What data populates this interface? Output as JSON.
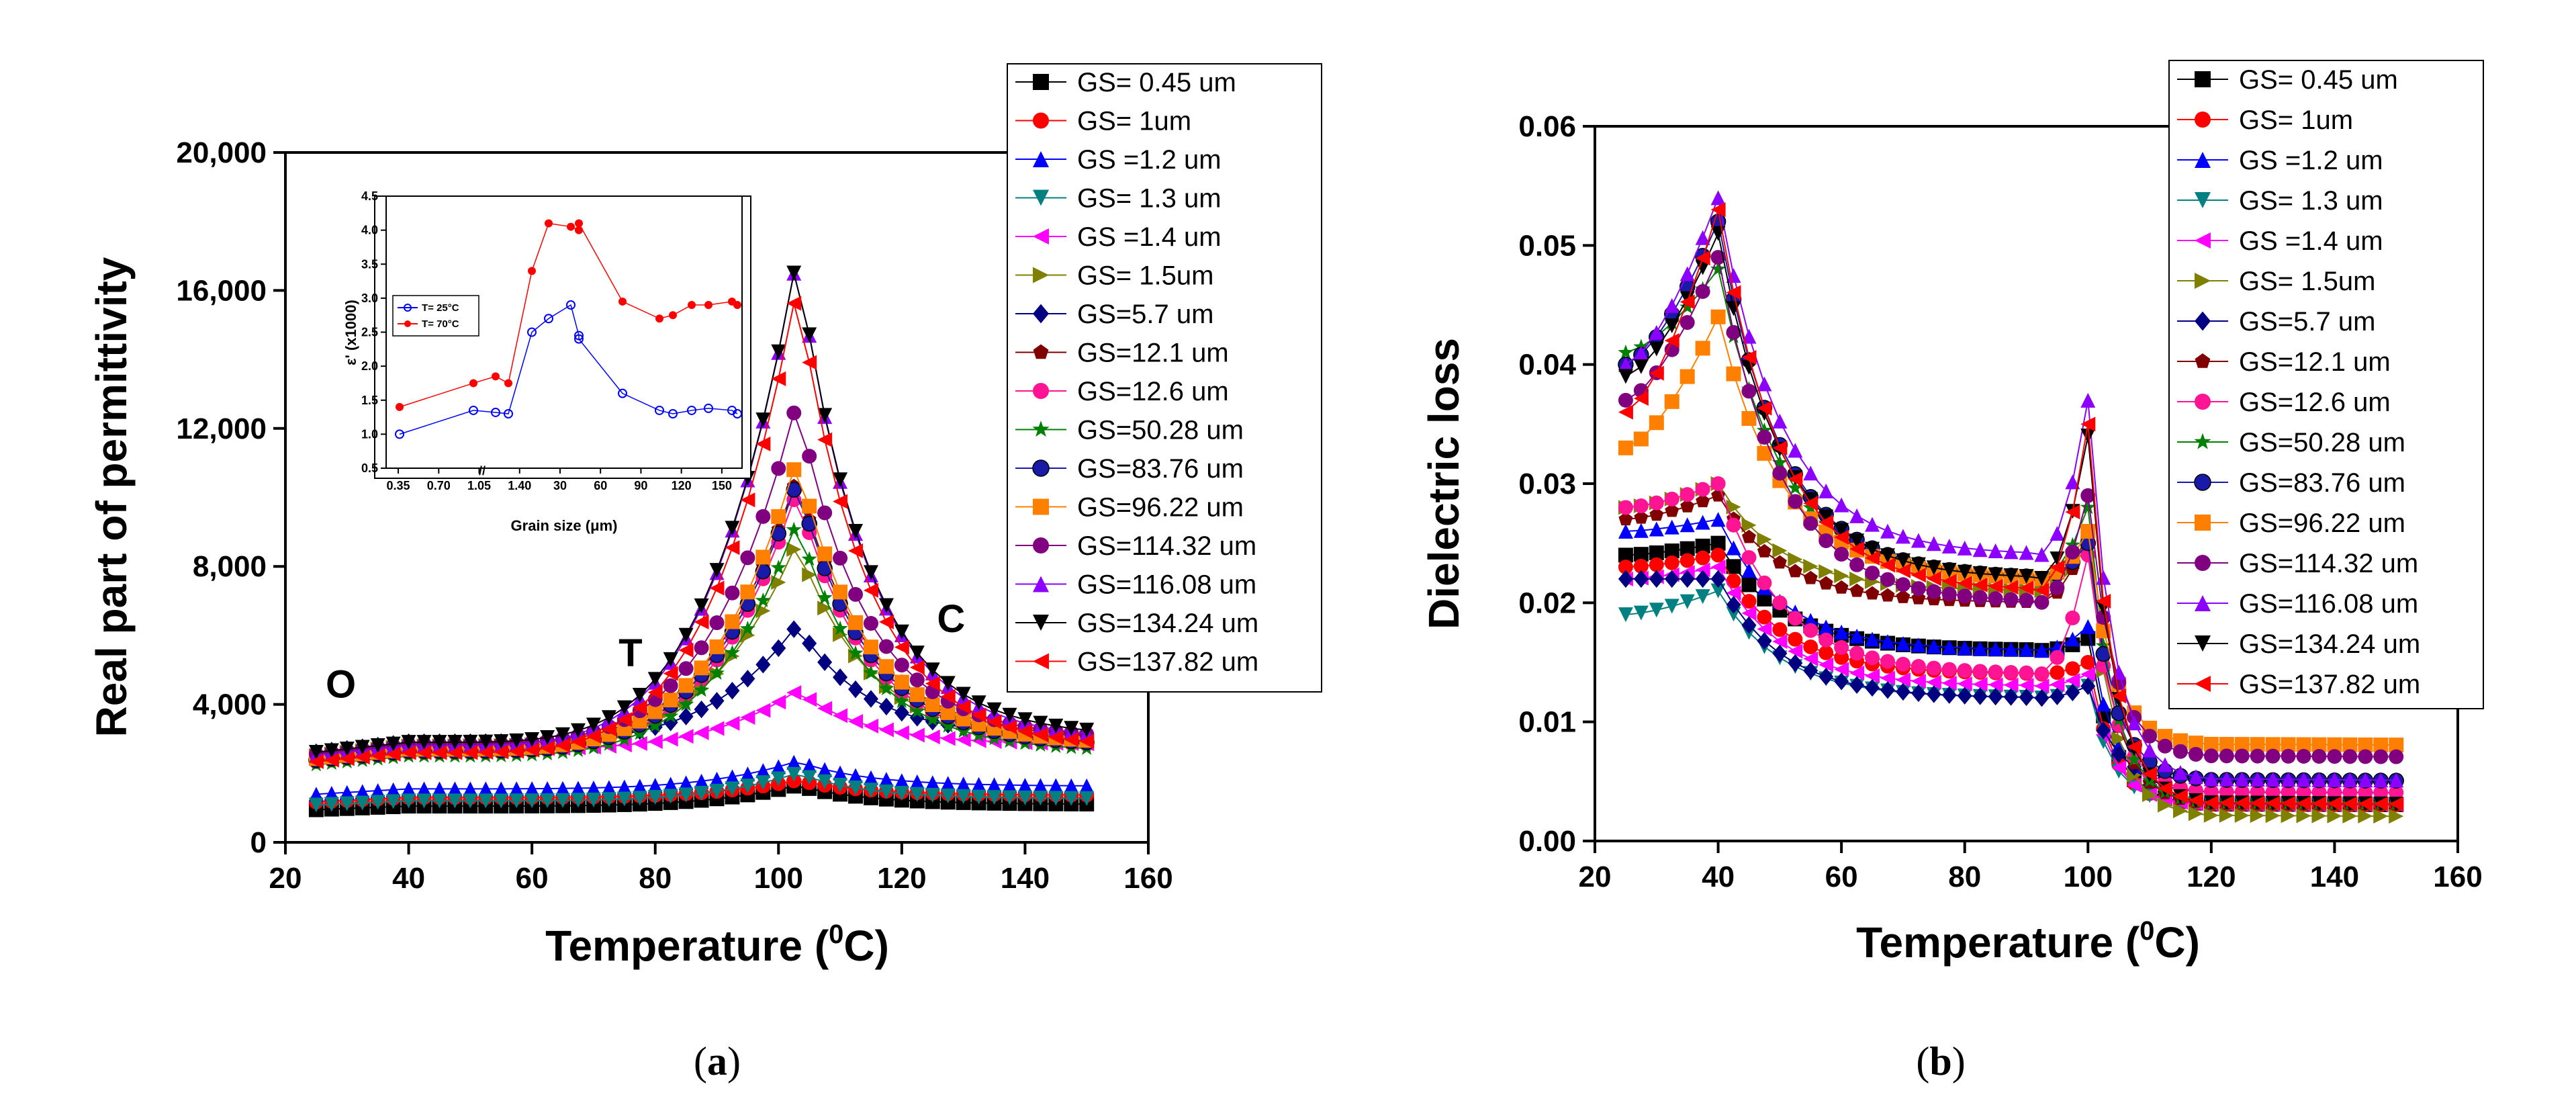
{
  "legend_entries": [
    "GS= 0.45 um",
    "GS= 1um",
    "GS =1.2 um",
    "GS= 1.3 um",
    "GS =1.4 um",
    "GS= 1.5um",
    "GS=5.7 um",
    "GS=12.1 um",
    "GS=12.6 um",
    "GS=50.28 um",
    "GS=83.76 um",
    "GS=96.22 um",
    "GS=114.32 um",
    "GS=116.08 um",
    "GS=134.24 um",
    "GS=137.82 um"
  ],
  "series_style": [
    {
      "color": "#000000",
      "marker": "square"
    },
    {
      "color": "#ff0000",
      "marker": "circle"
    },
    {
      "color": "#0000ff",
      "marker": "triangle-up"
    },
    {
      "color": "#008080",
      "marker": "triangle-down"
    },
    {
      "color": "#ff00ff",
      "marker": "triangle-left"
    },
    {
      "color": "#808000",
      "marker": "triangle-right"
    },
    {
      "color": "#000080",
      "marker": "diamond"
    },
    {
      "color": "#800000",
      "marker": "pentagon"
    },
    {
      "color": "#ff1493",
      "marker": "circle"
    },
    {
      "color": "#008000",
      "marker": "star"
    },
    {
      "color": "#1a1aa8",
      "marker": "circle-ring"
    },
    {
      "color": "#ff8000",
      "marker": "square"
    },
    {
      "color": "#800080",
      "marker": "circle"
    },
    {
      "color": "#8b00ff",
      "marker": "triangle-up"
    },
    {
      "color": "#000000",
      "marker": "triangle-down"
    },
    {
      "color": "#ff0000",
      "marker": "triangle-left"
    }
  ],
  "chart_data": [
    {
      "id": "a",
      "type": "line",
      "caption": "(a)",
      "xlabel": "Temperature (",
      "xlabel_sup": "0",
      "xlabel_end": "C)",
      "ylabel": "Real part of permittivity",
      "xlim": [
        20,
        160
      ],
      "ylim": [
        0,
        20000
      ],
      "xticks": [
        20,
        40,
        60,
        80,
        100,
        120,
        140,
        160
      ],
      "yticks": [
        0,
        4000,
        8000,
        12000,
        16000,
        20000
      ],
      "ytick_labels": [
        "0",
        "4,000",
        "8,000",
        "12,000",
        "16,000",
        "20,000"
      ],
      "annotations": [
        {
          "text": "O",
          "x": 29,
          "y": 4200
        },
        {
          "text": "T",
          "x": 76,
          "y": 5100
        },
        {
          "text": "C",
          "x": 128,
          "y": 6100
        }
      ],
      "series_profiles": [
        {
          "base": 1050,
          "peak": 1650
        },
        {
          "base": 1300,
          "peak": 1800
        },
        {
          "base": 1550,
          "peak": 2350
        },
        {
          "base": 1200,
          "peak": 2000
        },
        {
          "base": 2700,
          "peak": 4400
        },
        {
          "base": 2800,
          "peak": 8700
        },
        {
          "base": 2900,
          "peak": 6300
        },
        {
          "base": 2850,
          "peak": 10600
        },
        {
          "base": 2600,
          "peak": 10200
        },
        {
          "base": 2500,
          "peak": 9300
        },
        {
          "base": 2650,
          "peak": 10500
        },
        {
          "base": 2700,
          "peak": 11100
        },
        {
          "base": 2850,
          "peak": 12800
        },
        {
          "base": 2800,
          "peak": 17000
        },
        {
          "base": 2900,
          "peak": 17000
        },
        {
          "base": 2600,
          "peak": 16100
        }
      ],
      "inset": {
        "xlabel": "Grain size (μm)",
        "ylabel": "ε' (x1000)",
        "xtick_labels": [
          "0.35",
          "0.70",
          "1.05",
          "1.40",
          "30",
          "60",
          "90",
          "120",
          "150"
        ],
        "ylim": [
          0.5,
          4.5
        ],
        "yticks": [
          0.5,
          1.0,
          1.5,
          2.0,
          2.5,
          3.0,
          3.5,
          4.0,
          4.5
        ],
        "ytick_labels": [
          "0.5",
          "1.0",
          "1.5",
          "2.0",
          "2.5",
          "3.0",
          "3.5",
          "4.0",
          "4.5"
        ],
        "legend": [
          "T= 25°C",
          "T= 70°C"
        ],
        "series": [
          {
            "name": "T= 25°C",
            "color": "#0000ff",
            "values": [
              1.0,
              1.35,
              1.32,
              1.3,
              2.5,
              2.7,
              2.9,
              2.45,
              2.4,
              1.6,
              1.35,
              1.3,
              1.35,
              1.38,
              1.35,
              1.3
            ]
          },
          {
            "name": "T= 70°C",
            "color": "#ff0000",
            "values": [
              1.4,
              1.75,
              1.85,
              1.75,
              3.4,
              4.1,
              4.05,
              4.0,
              4.1,
              2.95,
              2.7,
              2.75,
              2.9,
              2.9,
              2.95,
              2.9
            ]
          }
        ]
      }
    },
    {
      "id": "b",
      "type": "line",
      "caption": "(b)",
      "xlabel": "Temperature (",
      "xlabel_sup": "0",
      "xlabel_end": "C)",
      "ylabel": "Dielectric loss",
      "xlim": [
        20,
        160
      ],
      "ylim": [
        0,
        0.06
      ],
      "xticks": [
        20,
        40,
        60,
        80,
        100,
        120,
        140,
        160
      ],
      "yticks": [
        0,
        0.01,
        0.02,
        0.03,
        0.04,
        0.05,
        0.06
      ],
      "ytick_labels": [
        "0.00",
        "0.01",
        "0.02",
        "0.03",
        "0.04",
        "0.05",
        "0.06"
      ],
      "series_profiles": [
        {
          "start": 0.024,
          "peak40": 0.025,
          "mid90": 0.016,
          "peak100": 0.017,
          "end": 0.003
        },
        {
          "start": 0.023,
          "peak40": 0.024,
          "mid90": 0.014,
          "peak100": 0.015,
          "end": 0.003
        },
        {
          "start": 0.026,
          "peak40": 0.027,
          "mid90": 0.016,
          "peak100": 0.018,
          "end": 0.004
        },
        {
          "start": 0.019,
          "peak40": 0.021,
          "mid90": 0.012,
          "peak100": 0.013,
          "end": 0.003
        },
        {
          "start": 0.022,
          "peak40": 0.023,
          "mid90": 0.013,
          "peak100": 0.014,
          "end": 0.003
        },
        {
          "start": 0.028,
          "peak40": 0.03,
          "mid90": 0.021,
          "peak100": 0.025,
          "end": 0.002
        },
        {
          "start": 0.022,
          "peak40": 0.022,
          "mid90": 0.012,
          "peak100": 0.013,
          "end": 0.005
        },
        {
          "start": 0.027,
          "peak40": 0.029,
          "mid90": 0.02,
          "peak100": 0.026,
          "end": 0.003
        },
        {
          "start": 0.028,
          "peak40": 0.03,
          "mid90": 0.014,
          "peak100": 0.024,
          "end": 0.004
        },
        {
          "start": 0.041,
          "peak40": 0.048,
          "mid90": 0.022,
          "peak100": 0.028,
          "end": 0.003
        },
        {
          "start": 0.04,
          "peak40": 0.052,
          "mid90": 0.022,
          "peak100": 0.025,
          "end": 0.005
        },
        {
          "start": 0.033,
          "peak40": 0.044,
          "mid90": 0.022,
          "peak100": 0.026,
          "end": 0.008
        },
        {
          "start": 0.037,
          "peak40": 0.049,
          "mid90": 0.02,
          "peak100": 0.029,
          "end": 0.007
        },
        {
          "start": 0.04,
          "peak40": 0.054,
          "mid90": 0.024,
          "peak100": 0.037,
          "end": 0.005
        },
        {
          "start": 0.039,
          "peak40": 0.051,
          "mid90": 0.022,
          "peak100": 0.034,
          "end": 0.003
        },
        {
          "start": 0.036,
          "peak40": 0.053,
          "mid90": 0.021,
          "peak100": 0.035,
          "end": 0.003
        }
      ]
    }
  ]
}
